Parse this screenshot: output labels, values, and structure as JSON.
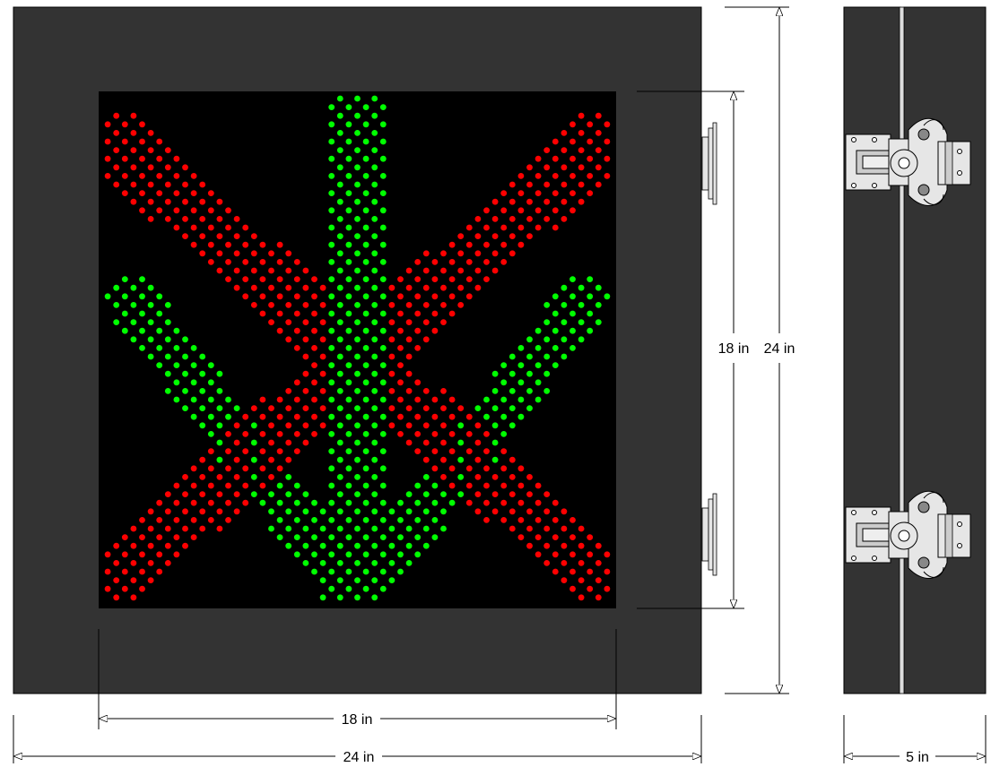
{
  "diagram": {
    "dimensions": {
      "panel_height": "18 in",
      "overall_height": "24 in",
      "panel_width": "18 in",
      "overall_width": "24 in",
      "depth": "5 in"
    },
    "colors": {
      "housing": "#333333",
      "panel": "#000000",
      "red_led": "#ff0000",
      "green_led": "#00ff00",
      "hardware": "#dddddd"
    }
  }
}
